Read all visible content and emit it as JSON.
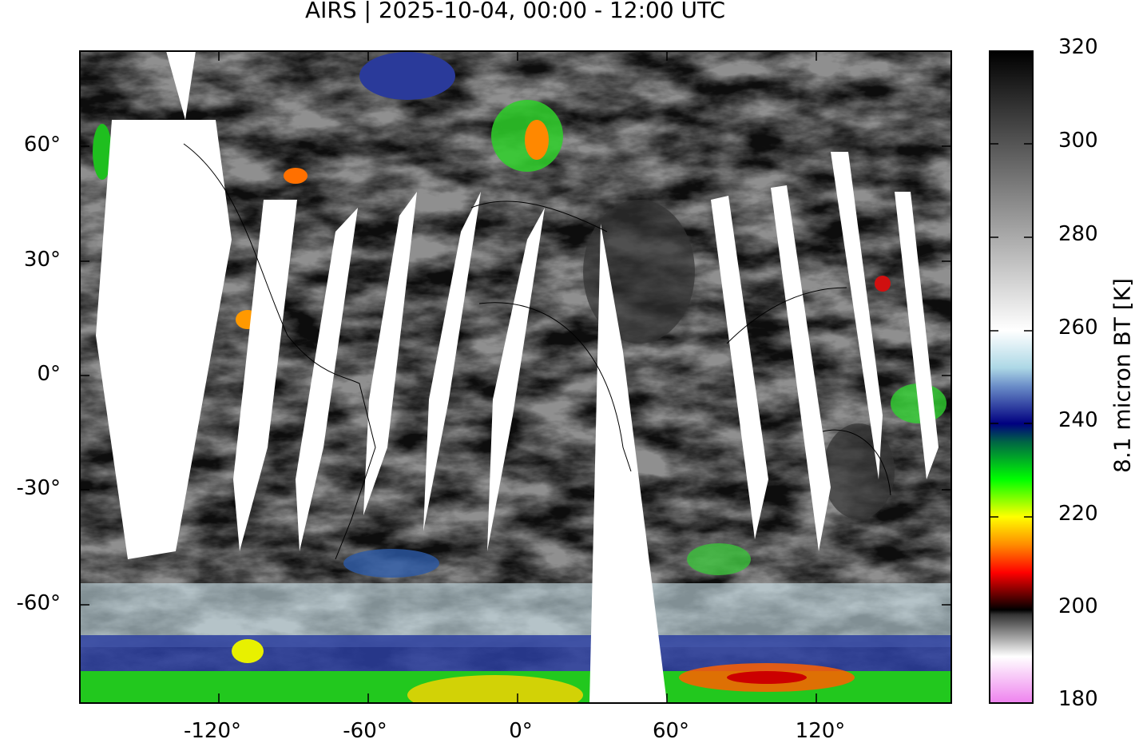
{
  "title": "AIRS | 2025-10-04, 00:00 - 12:00 UTC",
  "map": {
    "projection": "equirectangular",
    "lon_ticks": [
      "-120°",
      "-60°",
      "0°",
      "60°",
      "120°"
    ],
    "lat_ticks": [
      "60°",
      "30°",
      "0°",
      "-30°",
      "-60°"
    ],
    "coastlines": true,
    "missing_data_color": "#ffffff"
  },
  "colorbar": {
    "label": "8.1 micron BT [K]",
    "ticks": [
      "320",
      "300",
      "280",
      "260",
      "240",
      "220",
      "200",
      "180"
    ],
    "range": [
      180,
      320
    ],
    "stops": [
      {
        "value": 180,
        "color": "#ee82ee"
      },
      {
        "value": 190,
        "color": "#ffffff"
      },
      {
        "value": 199,
        "color": "#333333"
      },
      {
        "value": 200,
        "color": "#000000"
      },
      {
        "value": 208,
        "color": "#ff0000"
      },
      {
        "value": 214,
        "color": "#ff8c00"
      },
      {
        "value": 220,
        "color": "#ffff00"
      },
      {
        "value": 228,
        "color": "#00ff00"
      },
      {
        "value": 236,
        "color": "#006644"
      },
      {
        "value": 240,
        "color": "#000080"
      },
      {
        "value": 248,
        "color": "#6a8cc8"
      },
      {
        "value": 252,
        "color": "#add8e6"
      },
      {
        "value": 260,
        "color": "#ffffff"
      },
      {
        "value": 290,
        "color": "#808080"
      },
      {
        "value": 320,
        "color": "#000000"
      }
    ]
  }
}
